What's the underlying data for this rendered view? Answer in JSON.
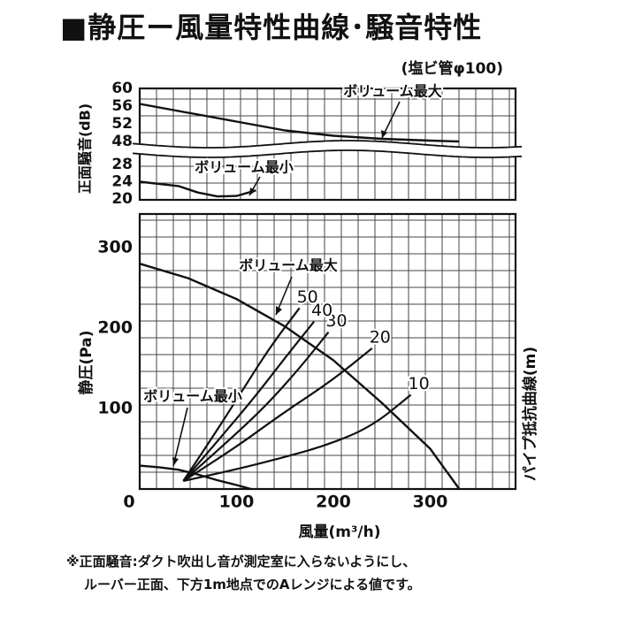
{
  "title": "■静圧ー風量特性曲線･騒音特性",
  "footnote": {
    "line1": "※正面騒音:ダクト吹出し音が測定室に入らないようにし、",
    "line2": "ルーバー正面、下方1m地点でのAレンジによる値です。"
  },
  "chart_data": [
    {
      "type": "line",
      "panel": "noise",
      "annotation": "(塩ビ管φ100)",
      "ylabel": "正面騒音(dB)",
      "yticks_upper": [
        "60",
        "56",
        "52",
        "48"
      ],
      "yticks_lower": [
        "28",
        "24",
        "20"
      ],
      "axis_break": true,
      "grid": true,
      "series": [
        {
          "name": "ボリューム最大",
          "x": [
            0,
            50,
            100,
            150,
            200,
            250,
            300,
            330
          ],
          "y": [
            56.5,
            54.5,
            52.5,
            50.5,
            49.3,
            48.6,
            48.2,
            48.0
          ]
        },
        {
          "name": "ボリューム最小",
          "x": [
            0,
            40,
            60,
            80,
            100,
            120
          ],
          "y": [
            24.0,
            23.0,
            21.5,
            20.6,
            20.7,
            22.0
          ]
        }
      ],
      "labels": {
        "max": "ボリューム最大",
        "min": "ボリューム最小"
      }
    },
    {
      "type": "line",
      "panel": "pressure",
      "xlabel": "風量(m³/h)",
      "ylabel": "静圧(Pa)",
      "y2label": "パイプ抵抗曲線(m)",
      "xlim": [
        0,
        350
      ],
      "ylim": [
        0,
        350
      ],
      "xticks": [
        "0",
        "100",
        "200",
        "300"
      ],
      "yticks": [
        "100",
        "200",
        "300"
      ],
      "grid": true,
      "series": [
        {
          "name": "ボリューム最大",
          "x": [
            0,
            50,
            100,
            150,
            200,
            250,
            300,
            330
          ],
          "y": [
            280,
            262,
            236,
            202,
            160,
            107,
            50,
            0
          ]
        },
        {
          "name": "ボリューム最小",
          "x": [
            0,
            20,
            40,
            60,
            80,
            100,
            115
          ],
          "y": [
            29,
            27,
            24,
            18,
            11,
            5,
            0
          ]
        }
      ],
      "pipe_curves": [
        {
          "name": "10",
          "points": [
            [
              45,
              10
            ],
            [
              95,
              23
            ],
            [
              145,
              38
            ],
            [
              195,
              55
            ],
            [
              240,
              78
            ],
            [
              280,
              117
            ]
          ]
        },
        {
          "name": "20",
          "points": [
            [
              45,
              10
            ],
            [
              95,
              48
            ],
            [
              145,
              92
            ],
            [
              200,
              136
            ],
            [
              240,
              175
            ]
          ]
        },
        {
          "name": "30",
          "points": [
            [
              45,
              10
            ],
            [
              90,
              58
            ],
            [
              130,
              103
            ],
            [
              165,
              150
            ],
            [
              195,
              195
            ]
          ]
        },
        {
          "name": "40",
          "points": [
            [
              45,
              10
            ],
            [
              85,
              66
            ],
            [
              120,
              116
            ],
            [
              150,
              163
            ],
            [
              180,
              208
            ]
          ]
        },
        {
          "name": "50",
          "points": [
            [
              45,
              10
            ],
            [
              80,
              73
            ],
            [
              110,
              130
            ],
            [
              135,
              177
            ],
            [
              165,
              225
            ]
          ]
        }
      ],
      "labels": {
        "max": "ボリューム最大",
        "min": "ボリューム最小"
      }
    }
  ]
}
